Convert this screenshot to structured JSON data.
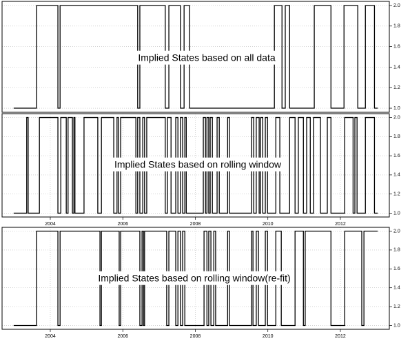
{
  "chart_data": [
    {
      "type": "line",
      "annotation": "Implied States based on all data",
      "color": "#000000",
      "grid": true,
      "xlim": [
        2002.67,
        2013.35
      ],
      "ylim": [
        0.96,
        2.04
      ],
      "yticks": [
        {
          "value": 1,
          "label": "1.0"
        },
        1.2,
        1.4,
        1.6,
        1.8,
        {
          "value": 2,
          "label": "2.0"
        }
      ],
      "x": [
        2002.99,
        2003.62,
        2004.21,
        2004.27,
        2006.41,
        2006.47,
        2007.17,
        2007.27,
        2007.59,
        2007.69,
        2007.84,
        2010.18,
        2010.39,
        2010.48,
        2010.6,
        2011.28,
        2011.74,
        2012.1,
        2012.48,
        2012.69,
        2012.94,
        2013.03
      ],
      "values": [
        1,
        2,
        1,
        2,
        1,
        2,
        1,
        2,
        1,
        2,
        1,
        2,
        1,
        2,
        1,
        2,
        1,
        2,
        1,
        2,
        1,
        1
      ]
    },
    {
      "type": "line",
      "annotation": "Implied States based on rolling window",
      "color": "#000000",
      "grid": true,
      "xlim": [
        2002.67,
        2013.35
      ],
      "ylim": [
        0.96,
        2.04
      ],
      "xticks": [
        2004,
        2006,
        2008,
        2010,
        2012
      ],
      "yticks": [
        {
          "value": 1,
          "label": "1.0"
        },
        1.2,
        1.4,
        1.6,
        1.8,
        {
          "value": 2,
          "label": "2.0"
        }
      ],
      "x": [
        2002.99,
        2003.35,
        2003.39,
        2003.7,
        2004.21,
        2004.29,
        2004.44,
        2004.49,
        2004.61,
        2004.65,
        2004.68,
        2004.93,
        2005.31,
        2005.41,
        2005.75,
        2005.84,
        2005.88,
        2005.94,
        2006.36,
        2006.41,
        2006.47,
        2006.55,
        2006.6,
        2006.66,
        2007.17,
        2007.23,
        2007.33,
        2007.46,
        2007.52,
        2007.59,
        2007.65,
        2007.71,
        2007.75,
        2008.22,
        2008.28,
        2008.32,
        2008.37,
        2008.41,
        2008.47,
        2008.6,
        2008.66,
        2008.89,
        2008.94,
        2009.55,
        2009.61,
        2009.68,
        2009.76,
        2009.8,
        2009.86,
        2009.93,
        2009.99,
        2010.22,
        2010.33,
        2010.6,
        2010.75,
        2010.84,
        2010.98,
        2011.07,
        2011.17,
        2011.26,
        2011.45,
        2011.64,
        2011.74,
        2012.12,
        2012.35,
        2012.4,
        2012.46,
        2012.69,
        2012.94,
        2013.03
      ],
      "values": [
        1,
        2,
        1,
        2,
        1,
        2,
        1,
        2,
        1,
        2,
        1,
        2,
        1,
        2,
        1,
        2,
        1,
        2,
        1,
        2,
        1,
        2,
        1,
        2,
        1,
        2,
        1,
        2,
        1,
        2,
        1,
        2,
        1,
        2,
        1,
        2,
        1,
        2,
        1,
        2,
        1,
        2,
        1,
        2,
        1,
        2,
        1,
        2,
        1,
        2,
        1,
        2,
        1,
        2,
        1,
        2,
        1,
        2,
        1,
        2,
        1,
        2,
        1,
        2,
        1,
        2,
        1,
        2,
        1,
        1
      ]
    },
    {
      "type": "line",
      "annotation": "Implied States based on rolling window(re-fit)",
      "color": "#000000",
      "grid": true,
      "xlim": [
        2002.67,
        2013.35
      ],
      "ylim": [
        0.96,
        2.04
      ],
      "xticks": [
        2004,
        2006,
        2008,
        2010,
        2012
      ],
      "yticks": [
        {
          "value": 1,
          "label": "1.0"
        },
        1.2,
        1.4,
        1.6,
        1.8,
        {
          "value": 2,
          "label": "2.0"
        }
      ],
      "x": [
        2002.99,
        2003.62,
        2004.21,
        2004.27,
        2005.37,
        2005.41,
        2005.9,
        2005.94,
        2006.47,
        2006.53,
        2006.57,
        2006.6,
        2007.21,
        2007.27,
        2007.46,
        2007.52,
        2007.59,
        2007.65,
        2007.71,
        2008.24,
        2008.32,
        2008.37,
        2008.43,
        2008.51,
        2008.56,
        2008.89,
        2008.94,
        2009.55,
        2009.59,
        2009.68,
        2009.74,
        2009.93,
        2009.99,
        2010.22,
        2010.37,
        2010.75,
        2010.98,
        2011.03,
        2011.74,
        2012.12,
        2012.59,
        2012.65,
        2013.03
      ],
      "values": [
        1,
        2,
        1,
        2,
        1,
        2,
        1,
        2,
        1,
        2,
        1,
        2,
        1,
        2,
        1,
        2,
        1,
        2,
        1,
        2,
        1,
        2,
        1,
        2,
        1,
        2,
        1,
        2,
        1,
        2,
        1,
        2,
        1,
        2,
        1,
        2,
        1,
        2,
        1,
        2,
        1,
        2,
        2
      ]
    }
  ]
}
